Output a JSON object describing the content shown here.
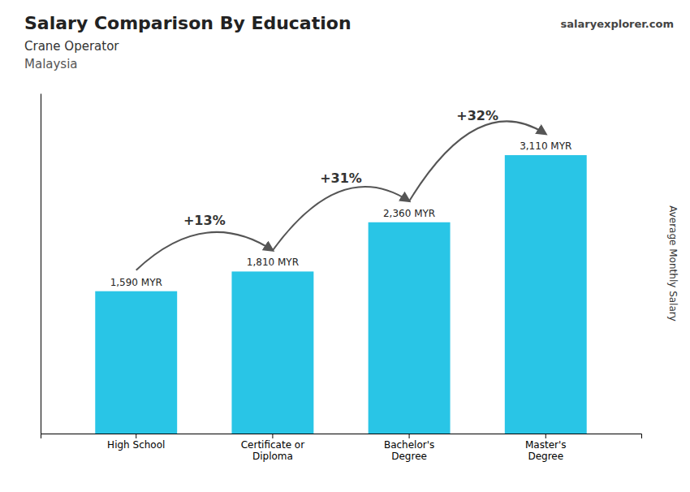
{
  "chart_data": {
    "type": "bar",
    "title": "Salary Comparison By Education",
    "subtitle": [
      "Crane Operator",
      "Malaysia"
    ],
    "source": "salaryexplorer.com",
    "ylabel": "Average Monthly Salary",
    "categories": [
      "High School",
      "Certificate or\nDiploma",
      "Bachelor's\nDegree",
      "Master's\nDegree"
    ],
    "values": [
      1590,
      1810,
      2360,
      3110
    ],
    "value_labels": [
      "1,590 MYR",
      "1,810 MYR",
      "2,360 MYR",
      "3,110 MYR"
    ],
    "data_labels": true,
    "annotations": [
      "+13%",
      "+31%",
      "+32%"
    ],
    "color": "#29c5e6",
    "ylim": [
      0,
      3800
    ],
    "tick_labels": "x",
    "grid": false
  }
}
